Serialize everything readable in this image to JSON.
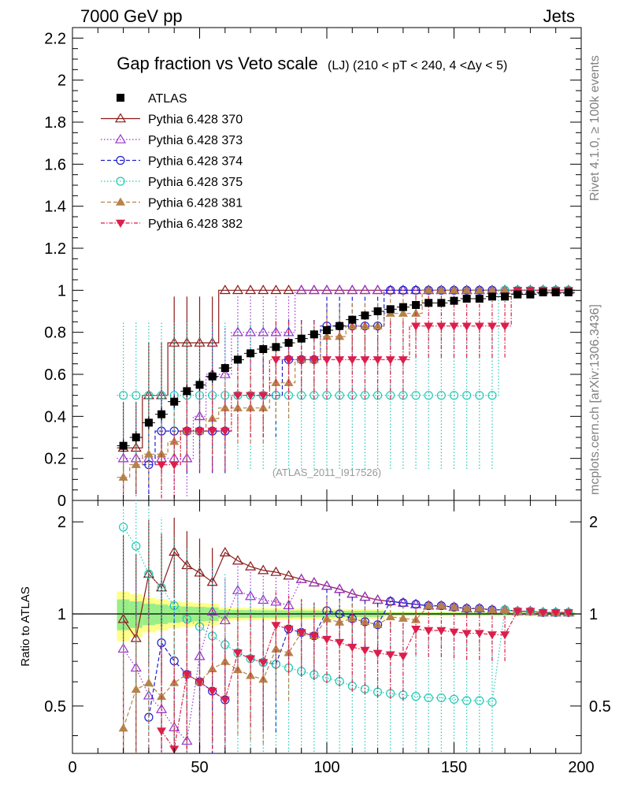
{
  "header": {
    "left": "7000 GeV pp",
    "right": "Jets",
    "side_rivet": "Rivet 4.1.0, ≥ 100k events",
    "side_mcplots": "mcplots.cern.ch [arXiv:1306.3436]",
    "watermark": "(ATLAS_2011_I917526)"
  },
  "chart_data": {
    "type": "scatter",
    "title_main": "Gap fraction vs Veto scale",
    "title_sub": "(LJ) (210 < pT < 240, 4 <Δy < 5)",
    "xlabel": "",
    "ylabel_main": "",
    "ylabel_ratio": "Ratio to ATLAS",
    "xlim": [
      0,
      200
    ],
    "ylim_main": [
      0,
      2.25
    ],
    "ylim_ratio": [
      0.35,
      2.35
    ],
    "x_ticks": [
      "0",
      "50",
      "100",
      "150",
      "200"
    ],
    "y_ticks_main": [
      "0",
      "0.2",
      "0.4",
      "0.6",
      "0.8",
      "1",
      "1.2",
      "1.4",
      "1.6",
      "1.8",
      "2",
      "2.2"
    ],
    "y_ticks_ratio": [
      "0.5",
      "1",
      "2"
    ],
    "x": [
      20,
      25,
      30,
      35,
      40,
      45,
      50,
      55,
      60,
      65,
      70,
      75,
      80,
      85,
      90,
      95,
      100,
      105,
      110,
      115,
      120,
      125,
      130,
      135,
      140,
      145,
      150,
      155,
      160,
      165,
      170,
      175,
      180,
      185,
      190,
      195
    ],
    "atlas": {
      "name": "ATLAS",
      "values": [
        0.26,
        0.3,
        0.37,
        0.41,
        0.47,
        0.52,
        0.55,
        0.59,
        0.63,
        0.67,
        0.7,
        0.72,
        0.73,
        0.75,
        0.77,
        0.79,
        0.81,
        0.83,
        0.86,
        0.88,
        0.9,
        0.91,
        0.92,
        0.93,
        0.94,
        0.94,
        0.95,
        0.96,
        0.96,
        0.97,
        0.97,
        0.98,
        0.98,
        0.99,
        0.99,
        0.99
      ],
      "errors": [
        0.03,
        0.03,
        0.03,
        0.03,
        0.03,
        0.03,
        0.03,
        0.03,
        0.02,
        0.02,
        0.02,
        0.02,
        0.02,
        0.02,
        0.02,
        0.02,
        0.02,
        0.02,
        0.02,
        0.02,
        0.02,
        0.01,
        0.01,
        0.01,
        0.01,
        0.01,
        0.01,
        0.01,
        0.01,
        0.01,
        0.01,
        0.01,
        0.01,
        0.01,
        0.01,
        0.01
      ]
    },
    "series": [
      {
        "name": "Pythia 6.428 370",
        "color": "#8b1a1a",
        "marker": "triangle-open",
        "dash": "",
        "values": [
          0.25,
          0.25,
          0.5,
          0.5,
          0.75,
          0.75,
          0.75,
          0.75,
          1,
          1,
          1,
          1,
          1,
          1,
          1,
          1,
          1,
          1,
          1,
          1,
          1,
          1,
          1,
          1,
          1,
          1,
          1,
          1,
          1,
          1,
          1,
          1,
          1,
          1,
          1,
          1
        ],
        "errors": [
          0.22,
          0.22,
          0.25,
          0.25,
          0.22,
          0.22,
          0.22,
          0.22,
          0,
          0,
          0,
          0,
          0,
          0,
          0,
          0,
          0,
          0,
          0,
          0,
          0,
          0,
          0,
          0,
          0,
          0,
          0,
          0,
          0,
          0,
          0,
          0,
          0,
          0,
          0,
          0
        ]
      },
      {
        "name": "Pythia 6.428 373",
        "color": "#9932cc",
        "marker": "triangle-open",
        "dash": "1.5,2.5",
        "values": [
          0.2,
          0.2,
          0.2,
          0.2,
          0.2,
          0.2,
          0.4,
          0.6,
          0.6,
          0.8,
          0.8,
          0.8,
          0.8,
          0.8,
          1,
          1,
          1,
          1,
          1,
          1,
          1,
          1,
          1,
          1,
          1,
          1,
          1,
          1,
          1,
          1,
          1,
          1,
          1,
          1,
          1,
          1
        ],
        "errors": [
          0.18,
          0.18,
          0.18,
          0.18,
          0.18,
          0.18,
          0.22,
          0.22,
          0.22,
          0.18,
          0.18,
          0.18,
          0.18,
          0.18,
          0,
          0,
          0,
          0,
          0,
          0,
          0,
          0,
          0,
          0,
          0,
          0,
          0,
          0,
          0,
          0,
          0,
          0,
          0,
          0,
          0,
          0
        ]
      },
      {
        "name": "Pythia 6.428 374",
        "color": "#1f1fcc",
        "marker": "circle-open",
        "dash": "5,3",
        "values": [
          null,
          null,
          0.17,
          0.33,
          0.33,
          0.33,
          0.33,
          0.33,
          0.33,
          null,
          null,
          0.5,
          0.5,
          0.67,
          0.67,
          0.67,
          0.83,
          0.83,
          0.83,
          0.83,
          0.83,
          1,
          1,
          1,
          1,
          1,
          1,
          1,
          1,
          1,
          1,
          1,
          1,
          1,
          1,
          1
        ],
        "errors": [
          0,
          0,
          0.17,
          0.2,
          0.2,
          0.2,
          0.2,
          0.2,
          0.2,
          0,
          0,
          0.2,
          0.2,
          0.19,
          0.19,
          0.19,
          0.15,
          0.15,
          0.15,
          0.15,
          0.15,
          0,
          0,
          0,
          0,
          0,
          0,
          0,
          0,
          0,
          0,
          0,
          0,
          0,
          0,
          0
        ]
      },
      {
        "name": "Pythia 6.428 375",
        "color": "#20c9b5",
        "marker": "circle-open",
        "dash": "1.5,2.5",
        "values": [
          0.5,
          0.5,
          0.5,
          0.5,
          0.5,
          0.5,
          0.5,
          0.5,
          0.5,
          0.5,
          0.5,
          0.5,
          0.5,
          0.5,
          0.5,
          0.5,
          0.5,
          0.5,
          0.5,
          0.5,
          0.5,
          0.5,
          0.5,
          0.5,
          0.5,
          0.5,
          0.5,
          0.5,
          0.5,
          0.5,
          1,
          1,
          1,
          1,
          1,
          1
        ],
        "errors": [
          0.35,
          0.35,
          0.35,
          0.35,
          0.35,
          0.35,
          0.35,
          0.35,
          0.35,
          0.35,
          0.35,
          0.35,
          0.35,
          0.35,
          0.35,
          0.35,
          0.35,
          0.35,
          0.35,
          0.35,
          0.35,
          0.35,
          0.35,
          0.35,
          0.35,
          0.35,
          0.35,
          0.35,
          0.35,
          0.35,
          0,
          0,
          0,
          0,
          0,
          0
        ]
      },
      {
        "name": "Pythia 6.428 381",
        "color": "#b5834a",
        "marker": "triangle-filled",
        "dash": "5,3",
        "values": [
          0.11,
          0.17,
          0.22,
          0.22,
          0.28,
          0.33,
          0.33,
          0.39,
          0.44,
          0.44,
          0.44,
          0.44,
          0.56,
          0.56,
          0.67,
          0.67,
          0.78,
          0.78,
          0.83,
          0.83,
          0.83,
          0.89,
          0.89,
          0.89,
          1,
          1,
          1,
          1,
          1,
          1,
          1,
          1,
          1,
          1,
          1,
          1
        ],
        "errors": [
          0.1,
          0.12,
          0.14,
          0.14,
          0.15,
          0.16,
          0.16,
          0.16,
          0.17,
          0.17,
          0.17,
          0.17,
          0.17,
          0.17,
          0.16,
          0.16,
          0.14,
          0.14,
          0.12,
          0.12,
          0.12,
          0.1,
          0.1,
          0.1,
          0,
          0,
          0,
          0,
          0,
          0,
          0,
          0,
          0,
          0,
          0,
          0
        ]
      },
      {
        "name": "Pythia 6.428 382",
        "color": "#dc1e4b",
        "marker": "triangle-down-filled",
        "dash": "5,2,1.5,2",
        "values": [
          null,
          null,
          null,
          0.17,
          0.17,
          0.33,
          0.33,
          0.33,
          0.33,
          0.5,
          0.5,
          0.5,
          0.67,
          0.67,
          0.67,
          0.67,
          0.67,
          0.67,
          0.67,
          0.67,
          0.67,
          0.67,
          0.67,
          0.83,
          0.83,
          0.83,
          0.83,
          0.83,
          0.83,
          0.83,
          0.83,
          1,
          1,
          1,
          1,
          1
        ],
        "errors": [
          0,
          0,
          0,
          0.16,
          0.16,
          0.19,
          0.19,
          0.19,
          0.19,
          0.2,
          0.2,
          0.2,
          0.19,
          0.19,
          0.19,
          0.19,
          0.19,
          0.19,
          0.19,
          0.19,
          0.19,
          0.19,
          0.19,
          0.15,
          0.15,
          0.15,
          0.15,
          0.15,
          0.15,
          0.15,
          0.15,
          0,
          0,
          0,
          0,
          0
        ]
      }
    ]
  }
}
